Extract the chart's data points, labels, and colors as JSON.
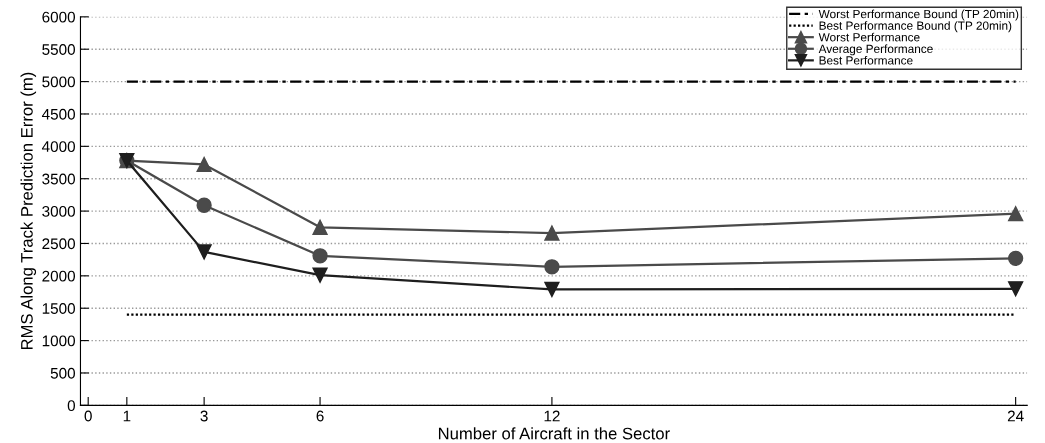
{
  "chart_data": {
    "type": "line",
    "xlabel": "Number of Aircraft in the Sector",
    "ylabel": "RMS Along Track Prediction Error (m)",
    "x": [
      1,
      3,
      6,
      12,
      24
    ],
    "series": [
      {
        "name": "Worst Performance Bound (TP 20min)",
        "color": "#000000",
        "values": [
          5000,
          5000,
          5000,
          5000,
          5000
        ],
        "marker": "none",
        "line_style": "dashdot"
      },
      {
        "name": "Best Performance Bound (TP 20min)",
        "color": "#000000",
        "values": [
          1400,
          1400,
          1400,
          1400,
          1400
        ],
        "marker": "none",
        "line_style": "dotted"
      },
      {
        "name": "Worst Performance",
        "color": "#4a4a4a",
        "values": [
          3780,
          3720,
          2750,
          2660,
          2960
        ],
        "marker": "triangle",
        "line_style": "solid"
      },
      {
        "name": "Average Performance",
        "color": "#4a4a4a",
        "values": [
          3780,
          3090,
          2310,
          2140,
          2270
        ],
        "marker": "circle",
        "line_style": "solid"
      },
      {
        "name": "Best Performance",
        "color": "#1e1e1e",
        "values": [
          3780,
          2370,
          2010,
          1790,
          1800
        ],
        "marker": "triangle_down",
        "line_style": "solid"
      }
    ],
    "xlim": [
      -0.2,
      24.3
    ],
    "xticks": [
      0,
      1,
      3,
      6,
      12,
      24
    ],
    "ylim": [
      0,
      6000
    ],
    "yticks": [
      0,
      500,
      1000,
      1500,
      2000,
      2500,
      3000,
      3500,
      4000,
      4500,
      5000,
      5500,
      6000
    ],
    "grid": "y",
    "legend": "top right"
  }
}
